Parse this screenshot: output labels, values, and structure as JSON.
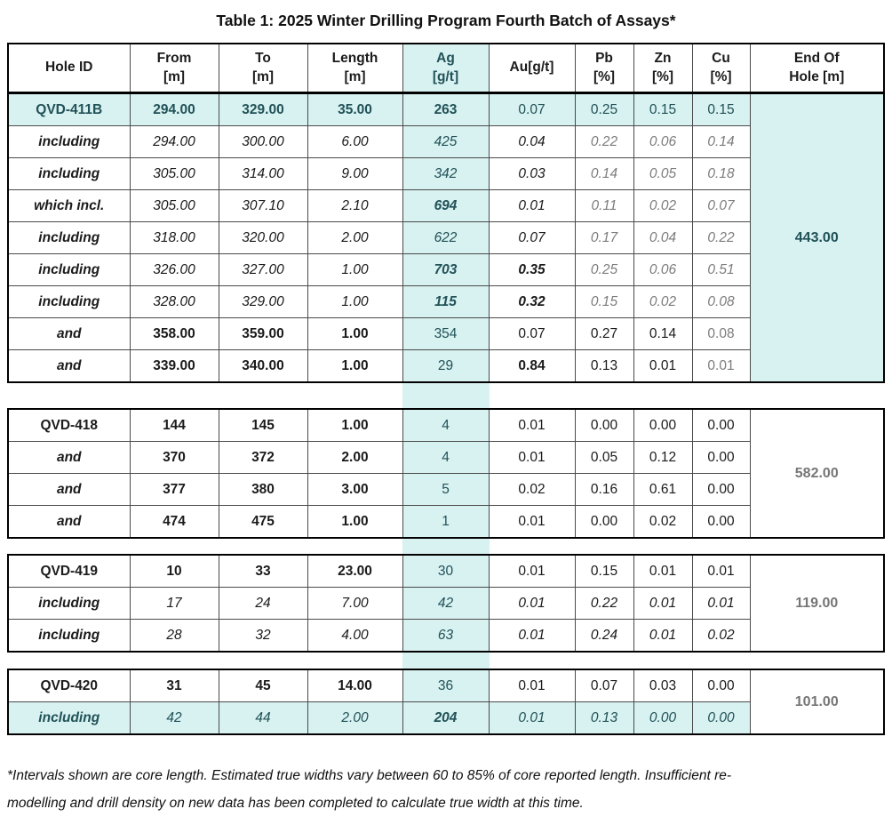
{
  "title": "Table 1: 2025 Winter Drilling Program Fourth Batch of Assays*",
  "header": {
    "columns": [
      {
        "key": "hole-id",
        "line1": "Hole ID",
        "line2": ""
      },
      {
        "key": "from",
        "line1": "From",
        "line2": "[m]"
      },
      {
        "key": "to",
        "line1": "To",
        "line2": "[m]"
      },
      {
        "key": "length",
        "line1": "Length",
        "line2": "[m]"
      },
      {
        "key": "ag",
        "line1": "Ag",
        "line2": "[g/t]"
      },
      {
        "key": "au",
        "line1": "Au[g/t]",
        "line2": ""
      },
      {
        "key": "pb",
        "line1": "Pb",
        "line2": "[%]"
      },
      {
        "key": "zn",
        "line1": "Zn",
        "line2": "[%]"
      },
      {
        "key": "cu",
        "line1": "Cu",
        "line2": "[%]"
      },
      {
        "key": "end-of-hole",
        "line1": "End Of",
        "line2": "Hole  [m]"
      }
    ]
  },
  "sections": [
    {
      "name": "QVD-411B",
      "end_of_hole": "443.00",
      "rows": [
        {
          "hl": true,
          "agx": true,
          "cells": [
            {
              "t": "QVD-411B",
              "c": "b"
            },
            {
              "t": "294.00",
              "c": "b"
            },
            {
              "t": "329.00",
              "c": "b"
            },
            {
              "t": "35.00",
              "c": "b"
            },
            {
              "t": "263",
              "c": "b"
            },
            {
              "t": "0.07",
              "c": ""
            },
            {
              "t": "0.25",
              "c": ""
            },
            {
              "t": "0.15",
              "c": ""
            },
            {
              "t": "0.15",
              "c": ""
            }
          ]
        },
        {
          "hl": false,
          "cells": [
            {
              "t": "including",
              "c": "b i"
            },
            {
              "t": "294.00",
              "c": "i"
            },
            {
              "t": "300.00",
              "c": "i"
            },
            {
              "t": "6.00",
              "c": "i"
            },
            {
              "t": "425",
              "c": "i"
            },
            {
              "t": "0.04",
              "c": "i"
            },
            {
              "t": "0.22",
              "c": "i g"
            },
            {
              "t": "0.06",
              "c": "i g"
            },
            {
              "t": "0.14",
              "c": "i g"
            }
          ]
        },
        {
          "hl": false,
          "cells": [
            {
              "t": "including",
              "c": "b i"
            },
            {
              "t": "305.00",
              "c": "i"
            },
            {
              "t": "314.00",
              "c": "i"
            },
            {
              "t": "9.00",
              "c": "i"
            },
            {
              "t": "342",
              "c": "i"
            },
            {
              "t": "0.03",
              "c": "i"
            },
            {
              "t": "0.14",
              "c": "i g"
            },
            {
              "t": "0.05",
              "c": "i g"
            },
            {
              "t": "0.18",
              "c": "i g"
            }
          ]
        },
        {
          "hl": false,
          "cells": [
            {
              "t": "which incl.",
              "c": "b i"
            },
            {
              "t": "305.00",
              "c": "i"
            },
            {
              "t": "307.10",
              "c": "i"
            },
            {
              "t": "2.10",
              "c": "i"
            },
            {
              "t": "694",
              "c": "b i"
            },
            {
              "t": "0.01",
              "c": "i"
            },
            {
              "t": "0.11",
              "c": "i g"
            },
            {
              "t": "0.02",
              "c": "i g"
            },
            {
              "t": "0.07",
              "c": "i g"
            }
          ]
        },
        {
          "hl": false,
          "cells": [
            {
              "t": "including",
              "c": "b i"
            },
            {
              "t": "318.00",
              "c": "i"
            },
            {
              "t": "320.00",
              "c": "i"
            },
            {
              "t": "2.00",
              "c": "i"
            },
            {
              "t": "622",
              "c": "i"
            },
            {
              "t": "0.07",
              "c": "i"
            },
            {
              "t": "0.17",
              "c": "i g"
            },
            {
              "t": "0.04",
              "c": "i g"
            },
            {
              "t": "0.22",
              "c": "i g"
            }
          ]
        },
        {
          "hl": false,
          "cells": [
            {
              "t": "including",
              "c": "b i"
            },
            {
              "t": "326.00",
              "c": "i"
            },
            {
              "t": "327.00",
              "c": "i"
            },
            {
              "t": "1.00",
              "c": "i"
            },
            {
              "t": "703",
              "c": "b i"
            },
            {
              "t": "0.35",
              "c": "b i"
            },
            {
              "t": "0.25",
              "c": "i g"
            },
            {
              "t": "0.06",
              "c": "i g"
            },
            {
              "t": "0.51",
              "c": "i g"
            }
          ]
        },
        {
          "hl": false,
          "cells": [
            {
              "t": "including",
              "c": "b i"
            },
            {
              "t": "328.00",
              "c": "i"
            },
            {
              "t": "329.00",
              "c": "i"
            },
            {
              "t": "1.00",
              "c": "i"
            },
            {
              "t": "115",
              "c": "b i"
            },
            {
              "t": "0.32",
              "c": "b i"
            },
            {
              "t": "0.15",
              "c": "i g"
            },
            {
              "t": "0.02",
              "c": "i g"
            },
            {
              "t": "0.08",
              "c": "i g"
            }
          ]
        },
        {
          "hl": false,
          "cells": [
            {
              "t": "and",
              "c": "b i"
            },
            {
              "t": "358.00",
              "c": "b"
            },
            {
              "t": "359.00",
              "c": "b"
            },
            {
              "t": "1.00",
              "c": "b"
            },
            {
              "t": "354",
              "c": ""
            },
            {
              "t": "0.07",
              "c": ""
            },
            {
              "t": "0.27",
              "c": ""
            },
            {
              "t": "0.14",
              "c": ""
            },
            {
              "t": "0.08",
              "c": "g"
            }
          ]
        },
        {
          "hl": false,
          "cells": [
            {
              "t": "and",
              "c": "b i"
            },
            {
              "t": "339.00",
              "c": "b"
            },
            {
              "t": "340.00",
              "c": "b"
            },
            {
              "t": "1.00",
              "c": "b"
            },
            {
              "t": "29",
              "c": ""
            },
            {
              "t": "0.84",
              "c": "b"
            },
            {
              "t": "0.13",
              "c": ""
            },
            {
              "t": "0.01",
              "c": ""
            },
            {
              "t": "0.01",
              "c": "g"
            }
          ]
        }
      ]
    },
    {
      "name": "QVD-418",
      "end_of_hole": "582.00",
      "rows": [
        {
          "hl": false,
          "cells": [
            {
              "t": "QVD-418",
              "c": "b"
            },
            {
              "t": "144",
              "c": "b"
            },
            {
              "t": "145",
              "c": "b"
            },
            {
              "t": "1.00",
              "c": "b"
            },
            {
              "t": "4",
              "c": ""
            },
            {
              "t": "0.01",
              "c": ""
            },
            {
              "t": "0.00",
              "c": ""
            },
            {
              "t": "0.00",
              "c": ""
            },
            {
              "t": "0.00",
              "c": ""
            }
          ]
        },
        {
          "hl": false,
          "cells": [
            {
              "t": "and",
              "c": "b i"
            },
            {
              "t": "370",
              "c": "b"
            },
            {
              "t": "372",
              "c": "b"
            },
            {
              "t": "2.00",
              "c": "b"
            },
            {
              "t": "4",
              "c": ""
            },
            {
              "t": "0.01",
              "c": ""
            },
            {
              "t": "0.05",
              "c": ""
            },
            {
              "t": "0.12",
              "c": ""
            },
            {
              "t": "0.00",
              "c": ""
            }
          ]
        },
        {
          "hl": false,
          "cells": [
            {
              "t": "and",
              "c": "b i"
            },
            {
              "t": "377",
              "c": "b"
            },
            {
              "t": "380",
              "c": "b"
            },
            {
              "t": "3.00",
              "c": "b"
            },
            {
              "t": "5",
              "c": ""
            },
            {
              "t": "0.02",
              "c": ""
            },
            {
              "t": "0.16",
              "c": ""
            },
            {
              "t": "0.61",
              "c": ""
            },
            {
              "t": "0.00",
              "c": ""
            }
          ]
        },
        {
          "hl": false,
          "cells": [
            {
              "t": "and",
              "c": "b i"
            },
            {
              "t": "474",
              "c": "b"
            },
            {
              "t": "475",
              "c": "b"
            },
            {
              "t": "1.00",
              "c": "b"
            },
            {
              "t": "1",
              "c": ""
            },
            {
              "t": "0.01",
              "c": ""
            },
            {
              "t": "0.00",
              "c": ""
            },
            {
              "t": "0.02",
              "c": ""
            },
            {
              "t": "0.00",
              "c": ""
            }
          ]
        }
      ]
    },
    {
      "name": "QVD-419",
      "end_of_hole": "119.00",
      "rows": [
        {
          "hl": false,
          "cells": [
            {
              "t": "QVD-419",
              "c": "b"
            },
            {
              "t": "10",
              "c": "b"
            },
            {
              "t": "33",
              "c": "b"
            },
            {
              "t": "23.00",
              "c": "b"
            },
            {
              "t": "30",
              "c": ""
            },
            {
              "t": "0.01",
              "c": ""
            },
            {
              "t": "0.15",
              "c": ""
            },
            {
              "t": "0.01",
              "c": ""
            },
            {
              "t": "0.01",
              "c": ""
            }
          ]
        },
        {
          "hl": false,
          "cells": [
            {
              "t": "including",
              "c": "b i"
            },
            {
              "t": "17",
              "c": "i"
            },
            {
              "t": "24",
              "c": "i"
            },
            {
              "t": "7.00",
              "c": "i"
            },
            {
              "t": "42",
              "c": "i"
            },
            {
              "t": "0.01",
              "c": "i"
            },
            {
              "t": "0.22",
              "c": "i"
            },
            {
              "t": "0.01",
              "c": "i"
            },
            {
              "t": "0.01",
              "c": "i"
            }
          ]
        },
        {
          "hl": false,
          "cells": [
            {
              "t": "including",
              "c": "b i"
            },
            {
              "t": "28",
              "c": "i"
            },
            {
              "t": "32",
              "c": "i"
            },
            {
              "t": "4.00",
              "c": "i"
            },
            {
              "t": "63",
              "c": "i"
            },
            {
              "t": "0.01",
              "c": "i"
            },
            {
              "t": "0.24",
              "c": "i"
            },
            {
              "t": "0.01",
              "c": "i"
            },
            {
              "t": "0.02",
              "c": "i"
            }
          ]
        }
      ]
    },
    {
      "name": "QVD-420",
      "end_of_hole": "101.00",
      "rows": [
        {
          "hl": false,
          "cells": [
            {
              "t": "QVD-420",
              "c": "b"
            },
            {
              "t": "31",
              "c": "b"
            },
            {
              "t": "45",
              "c": "b"
            },
            {
              "t": "14.00",
              "c": "b"
            },
            {
              "t": "36",
              "c": ""
            },
            {
              "t": "0.01",
              "c": ""
            },
            {
              "t": "0.07",
              "c": ""
            },
            {
              "t": "0.03",
              "c": ""
            },
            {
              "t": "0.00",
              "c": ""
            }
          ]
        },
        {
          "hl": true,
          "agx": true,
          "cells": [
            {
              "t": "including",
              "c": "b i"
            },
            {
              "t": "42",
              "c": "i"
            },
            {
              "t": "44",
              "c": "i"
            },
            {
              "t": "2.00",
              "c": "i"
            },
            {
              "t": "204",
              "c": "b i"
            },
            {
              "t": "0.01",
              "c": "i"
            },
            {
              "t": "0.13",
              "c": "i"
            },
            {
              "t": "0.00",
              "c": "i"
            },
            {
              "t": "0.00",
              "c": "i"
            }
          ]
        }
      ]
    }
  ],
  "footnote": {
    "lines": [
      "*Intervals shown are core length. Estimated true widths vary between 60 to 85% of core reported length. Insufficient re-",
      "modelling and drill density on new data has been completed to calculate true width at this time."
    ]
  },
  "colors": {
    "highlight": "#d8f1f1",
    "highlight_strong": "#c7e9e9",
    "teal_text": "#215257",
    "gray_text": "#7d7d7d",
    "end_value_gray": "#767676"
  }
}
